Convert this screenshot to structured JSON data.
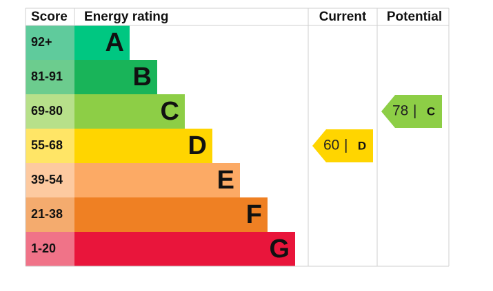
{
  "header": {
    "score": "Score",
    "rating": "Energy rating",
    "current": "Current",
    "potential": "Potential"
  },
  "bands": [
    {
      "score": "92+",
      "letter": "A",
      "color": "#00c781",
      "score_color": "#5fcb9c"
    },
    {
      "score": "81-91",
      "letter": "B",
      "color": "#19b459",
      "score_color": "#6ccc8e"
    },
    {
      "score": "69-80",
      "letter": "C",
      "color": "#8dce46",
      "score_color": "#b7e08a"
    },
    {
      "score": "55-68",
      "letter": "D",
      "color": "#ffd500",
      "score_color": "#ffe566"
    },
    {
      "score": "39-54",
      "letter": "E",
      "color": "#fcaa65",
      "score_color": "#fdcaa0"
    },
    {
      "score": "21-38",
      "letter": "F",
      "color": "#ef8023",
      "score_color": "#f4ab6e"
    },
    {
      "score": "1-20",
      "letter": "G",
      "color": "#e9153b",
      "score_color": "#f07388"
    }
  ],
  "current": {
    "value": 60,
    "separator": "|",
    "letter": "D"
  },
  "potential": {
    "value": 78,
    "separator": "|",
    "letter": "C"
  }
}
